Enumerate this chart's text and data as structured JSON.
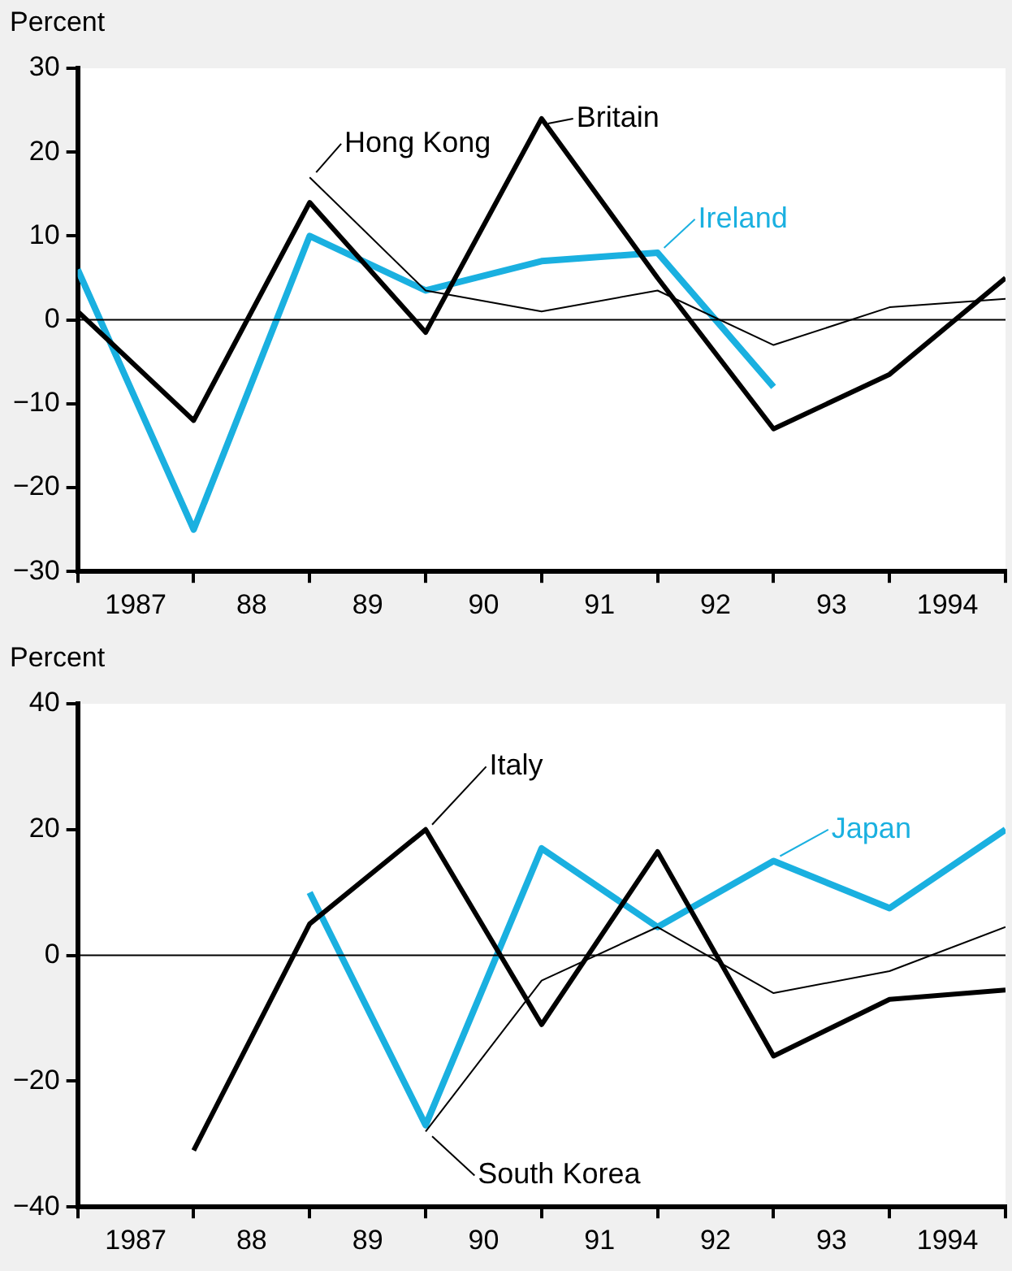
{
  "chart_data": [
    {
      "type": "line",
      "ylabel": "Percent",
      "x": [
        1986.5,
        1987.5,
        1988.5,
        1989.5,
        1990.5,
        1991.5,
        1992.5,
        1993.5,
        1994.5
      ],
      "xlim": [
        1986.5,
        1994.5
      ],
      "xticks": [
        {
          "value": 1986.5,
          "label": null
        },
        {
          "value": 1987,
          "label": "1987"
        },
        {
          "value": 1987.5,
          "label": null
        },
        {
          "value": 1988,
          "label": "88"
        },
        {
          "value": 1988.5,
          "label": null
        },
        {
          "value": 1989,
          "label": "89"
        },
        {
          "value": 1989.5,
          "label": null
        },
        {
          "value": 1990,
          "label": "90"
        },
        {
          "value": 1990.5,
          "label": null
        },
        {
          "value": 1991,
          "label": "91"
        },
        {
          "value": 1991.5,
          "label": null
        },
        {
          "value": 1992,
          "label": "92"
        },
        {
          "value": 1992.5,
          "label": null
        },
        {
          "value": 1993,
          "label": "93"
        },
        {
          "value": 1993.5,
          "label": null
        },
        {
          "value": 1994,
          "label": "1994"
        },
        {
          "value": 1994.5,
          "label": null
        }
      ],
      "ylim": [
        -30,
        30
      ],
      "yticks": [
        -30,
        -20,
        -10,
        0,
        10,
        20,
        30
      ],
      "grid": false,
      "legend": "top",
      "ref_lines": [
        {
          "axis": "y",
          "value": 0,
          "color": "#000000"
        }
      ],
      "series": [
        {
          "name": "Hong Kong",
          "color": "#000000",
          "values": [
            null,
            null,
            17,
            3.5,
            1,
            3.5,
            -3,
            1.5,
            2.5
          ]
        },
        {
          "name": "Britain",
          "color": "#000000",
          "values": [
            1,
            -12,
            14,
            -1.5,
            24,
            5,
            -13,
            -6.5,
            5
          ]
        },
        {
          "name": "Ireland",
          "color": "#1ab0e0",
          "values": [
            6,
            -25,
            10,
            3.5,
            7,
            8,
            -8,
            null,
            null
          ]
        }
      ]
    },
    {
      "type": "line",
      "ylabel": "Percent",
      "x": [
        1987.5,
        1988.5,
        1989.5,
        1990.5,
        1991.5,
        1992.5,
        1993.5,
        1994.5
      ],
      "xlim": [
        1986.5,
        1994.5
      ],
      "xticks": [
        {
          "value": 1986.5,
          "label": null
        },
        {
          "value": 1987,
          "label": "1987"
        },
        {
          "value": 1987.5,
          "label": null
        },
        {
          "value": 1988,
          "label": "88"
        },
        {
          "value": 1988.5,
          "label": null
        },
        {
          "value": 1989,
          "label": "89"
        },
        {
          "value": 1989.5,
          "label": null
        },
        {
          "value": 1990,
          "label": "90"
        },
        {
          "value": 1990.5,
          "label": null
        },
        {
          "value": 1991,
          "label": "91"
        },
        {
          "value": 1991.5,
          "label": null
        },
        {
          "value": 1992,
          "label": "92"
        },
        {
          "value": 1992.5,
          "label": null
        },
        {
          "value": 1993,
          "label": "93"
        },
        {
          "value": 1993.5,
          "label": null
        },
        {
          "value": 1994,
          "label": "1994"
        },
        {
          "value": 1994.5,
          "label": null
        }
      ],
      "ylim": [
        -40,
        40
      ],
      "yticks": [
        -40,
        -20,
        0,
        20,
        40
      ],
      "grid": false,
      "legend": "center",
      "ref_lines": [
        {
          "axis": "y",
          "value": 0,
          "color": "#000000"
        }
      ],
      "series": [
        {
          "name": "South Korea",
          "color": "#000000",
          "values": [
            null,
            null,
            -28,
            -4,
            4.5,
            -6,
            -2.5,
            4.5
          ]
        },
        {
          "name": "Italy",
          "color": "#000000",
          "values": [
            -31,
            5,
            20,
            -11,
            16.5,
            -16,
            -7,
            -5.5
          ]
        },
        {
          "name": "Japan",
          "color": "#1ab0e0",
          "values": [
            null,
            10,
            -27,
            17,
            4.5,
            15,
            7.5,
            20
          ]
        }
      ]
    }
  ]
}
